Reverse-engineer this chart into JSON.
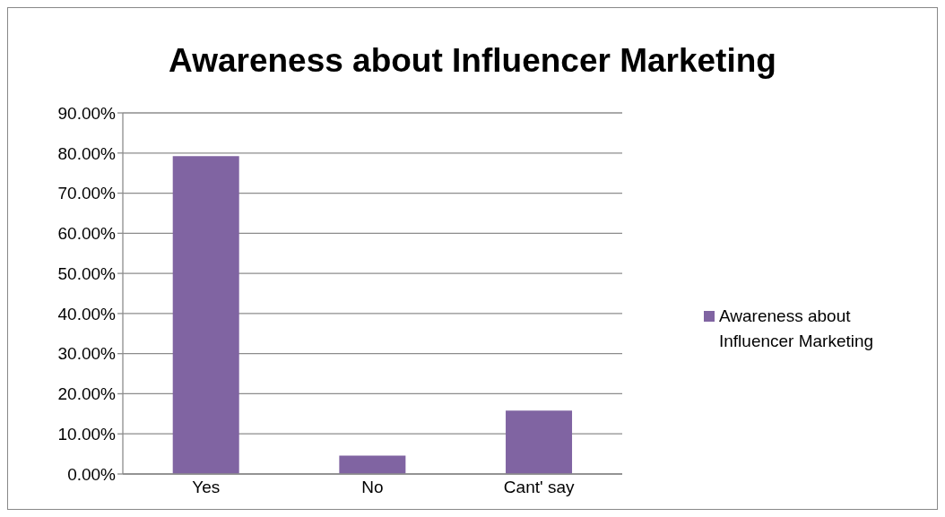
{
  "chart_data": {
    "type": "bar",
    "title": "Awareness about Influencer Marketing",
    "categories": [
      "Yes",
      "No",
      "Cant' say"
    ],
    "series": [
      {
        "name": "Awareness about Influencer Marketing",
        "color": "#8064a2",
        "values": [
          79.2,
          4.6,
          15.8
        ]
      }
    ],
    "ylim": [
      0,
      90
    ],
    "yticks": [
      {
        "value": 0,
        "label": "0.00%"
      },
      {
        "value": 10,
        "label": "10.00%"
      },
      {
        "value": 20,
        "label": "20.00%"
      },
      {
        "value": 30,
        "label": "30.00%"
      },
      {
        "value": 40,
        "label": "40.00%"
      },
      {
        "value": 50,
        "label": "50.00%"
      },
      {
        "value": 60,
        "label": "60.00%"
      },
      {
        "value": 70,
        "label": "70.00%"
      },
      {
        "value": 80,
        "label": "80.00%"
      },
      {
        "value": 90,
        "label": "90.00%"
      }
    ],
    "grid": "y",
    "legend": "right"
  }
}
